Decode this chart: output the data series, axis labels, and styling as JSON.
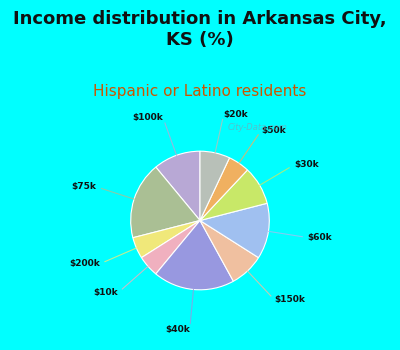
{
  "title": "Income distribution in Arkansas City,\nKS (%)",
  "subtitle": "Hispanic or Latino residents",
  "title_fontsize": 13,
  "subtitle_fontsize": 11,
  "subtitle_color": "#cc5500",
  "background_color": "#00ffff",
  "watermark": "City-Data.com",
  "labels": [
    "$100k",
    "$75k",
    "$200k",
    "$10k",
    "$40k",
    "$150k",
    "$60k",
    "$30k",
    "$50k",
    "$20k"
  ],
  "sizes": [
    11,
    18,
    5,
    5,
    19,
    8,
    13,
    9,
    5,
    7
  ],
  "colors": [
    "#b8a8d5",
    "#aabf94",
    "#f0e87a",
    "#f0b0bf",
    "#9898e0",
    "#f0c0a0",
    "#a0c0f0",
    "#c8e868",
    "#f0b060",
    "#b8c0b8"
  ],
  "label_colors": [
    "#b8a8d5",
    "#aabf94",
    "#f0e87a",
    "#f0b0bf",
    "#9898e0",
    "#f0c0a0",
    "#a0c0f0",
    "#c8e868",
    "#f0b060",
    "#b8c0b8"
  ]
}
